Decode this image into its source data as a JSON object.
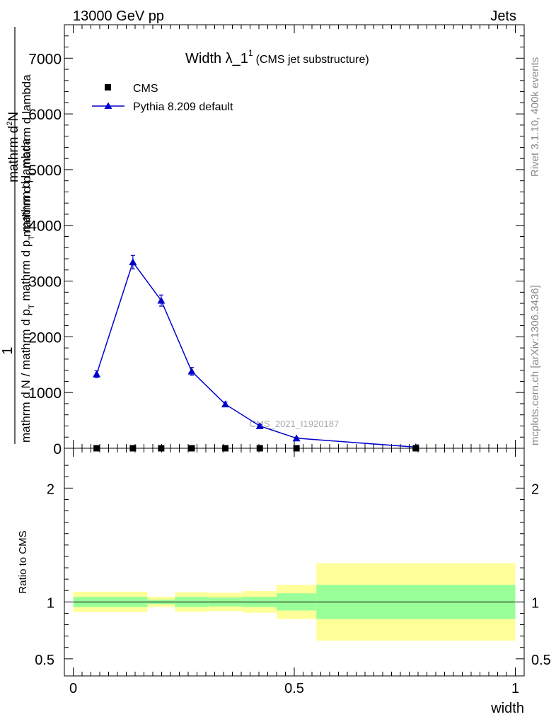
{
  "header": {
    "left": "13000 GeV pp",
    "right": "Jets"
  },
  "side_labels": {
    "rivet": "Rivet 3.1.10,  400k events",
    "mcplots": "mcplots.cern.ch [arXiv:1306.3436]"
  },
  "chart_data": [
    {
      "type": "line",
      "title_main": "Width λ_1",
      "title_sup": "1",
      "title_paren": "(CMS jet substructure)",
      "watermark": "CMS_2021_I1920187",
      "ylabel_top_num": "mathrm d",
      "ylabel_top_sup": "2",
      "ylabel_top_rest": "N",
      "ylabel_num_right": "mathrm d p",
      "ylabel_num_right_sub": "T",
      "ylabel_num_right_rest": " mathrm d lambda",
      "ylabel_one": "1",
      "ylabel_den": "mathrm d N / mathrm d p",
      "ylabel_den_sub": "T",
      "ylabel_den_rest": " mathrm d p",
      "ylabel_den_sub2": "T",
      "ylabel_den_rest2": " mathrm d lambda",
      "ylim": [
        0,
        7600
      ],
      "xlim": [
        -0.02,
        1.02
      ],
      "yticks": [
        0,
        1000,
        2000,
        3000,
        4000,
        5000,
        6000,
        7000
      ],
      "ytick_labels": [
        "0",
        "1000",
        "2000",
        "3000",
        "4000",
        "5000",
        "6000",
        "7000"
      ],
      "legend": {
        "cms": "CMS",
        "pythia": "Pythia 8.209 default"
      },
      "legend_position": "top-left",
      "series": [
        {
          "name": "CMS",
          "marker": "square",
          "color": "#000000",
          "x": [
            0.053,
            0.135,
            0.199,
            0.268,
            0.344,
            0.422,
            0.505,
            0.775
          ],
          "y": [
            0,
            0,
            0,
            0,
            0,
            0,
            0,
            0
          ]
        },
        {
          "name": "Pythia 8.209 default",
          "marker": "triangle",
          "color": "#0000cc",
          "x": [
            0.053,
            0.135,
            0.199,
            0.268,
            0.344,
            0.422,
            0.505,
            0.775
          ],
          "y": [
            1330,
            3340,
            2650,
            1380,
            790,
            400,
            180,
            20
          ],
          "yerr": [
            60,
            120,
            100,
            70,
            40,
            25,
            15,
            8
          ]
        }
      ]
    },
    {
      "type": "area",
      "ylabel": "Ratio to CMS",
      "xlabel": "width",
      "ylim": [
        0.35,
        2.35
      ],
      "yticks": [
        0.5,
        1,
        2
      ],
      "ytick_labels": [
        "0.5",
        "1",
        "2"
      ],
      "xticks": [
        0,
        0.5,
        1
      ],
      "xtick_labels": [
        "0",
        "0.5",
        "1"
      ],
      "reference_line": 1,
      "bins": [
        {
          "x0": 0.0,
          "x1": 0.168,
          "yellow": [
            0.91,
            1.09
          ],
          "green": [
            0.955,
            1.045
          ]
        },
        {
          "x0": 0.168,
          "x1": 0.23,
          "yellow": [
            0.955,
            1.045
          ],
          "green": [
            0.98,
            1.02
          ]
        },
        {
          "x0": 0.23,
          "x1": 0.306,
          "yellow": [
            0.915,
            1.085
          ],
          "green": [
            0.955,
            1.045
          ]
        },
        {
          "x0": 0.306,
          "x1": 0.383,
          "yellow": [
            0.92,
            1.08
          ],
          "green": [
            0.96,
            1.04
          ]
        },
        {
          "x0": 0.383,
          "x1": 0.46,
          "yellow": [
            0.905,
            1.095
          ],
          "green": [
            0.955,
            1.045
          ]
        },
        {
          "x0": 0.46,
          "x1": 0.55,
          "yellow": [
            0.85,
            1.15
          ],
          "green": [
            0.925,
            1.075
          ]
        },
        {
          "x0": 0.55,
          "x1": 1.0,
          "yellow": [
            0.66,
            1.34
          ],
          "green": [
            0.85,
            1.15
          ]
        }
      ]
    }
  ],
  "colors": {
    "yellow_band": "#ffff99",
    "green_band": "#99ff99",
    "pythia": "#0000cc",
    "cms": "#000000",
    "watermark": "#aaaaaa",
    "side_text": "#888888"
  }
}
